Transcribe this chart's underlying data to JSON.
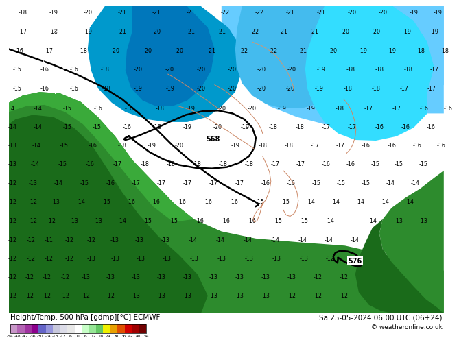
{
  "title_left": "Height/Temp. 500 hPa [gdmp][°C] ECMWF",
  "title_right": "Sa 25-05-2024 06:00 UTC (06+24)",
  "copyright": "© weatheronline.co.uk",
  "colorbar_values": [
    -54,
    -48,
    -42,
    -36,
    -30,
    -24,
    -18,
    -12,
    -6,
    0,
    6,
    12,
    18,
    24,
    30,
    36,
    42,
    48,
    54
  ],
  "colorbar_colors": [
    "#c896c8",
    "#b464b4",
    "#a032a0",
    "#8c008c",
    "#6464c8",
    "#9696dc",
    "#c8c8dc",
    "#dcdce8",
    "#e8e8e8",
    "#ffffff",
    "#c8ffc8",
    "#96e696",
    "#64c864",
    "#f0f000",
    "#e8a000",
    "#e05000",
    "#d00000",
    "#a00000",
    "#700000"
  ],
  "bg_color": "#00d4ff",
  "land_dark_green": "#1a6b1a",
  "land_mid_green": "#2d8b2d",
  "land_light_green": "#3aaa3a",
  "deep_blue": "#0088cc",
  "medium_blue": "#00aadd",
  "light_cyan": "#55ccff",
  "pale_cyan": "#aaddff",
  "info_bar_bg": "#ffffff",
  "contour568_label": "568",
  "contour576_label": "576",
  "temp_color": "#000000",
  "temp_fontsize": 5.8
}
